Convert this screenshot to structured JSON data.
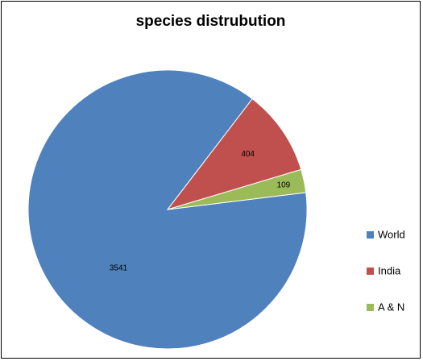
{
  "chart_data": {
    "type": "pie",
    "title": "species distrubution",
    "categories": [
      "World",
      "India",
      "A & N"
    ],
    "values": [
      3541,
      404,
      109
    ],
    "colors": [
      "#4F81BD",
      "#C0504D",
      "#9BBB59"
    ],
    "legend": {
      "placement": "right",
      "entries": [
        "World",
        "India",
        "A & N"
      ]
    },
    "data_labels": [
      "3541",
      "404",
      "109"
    ]
  }
}
